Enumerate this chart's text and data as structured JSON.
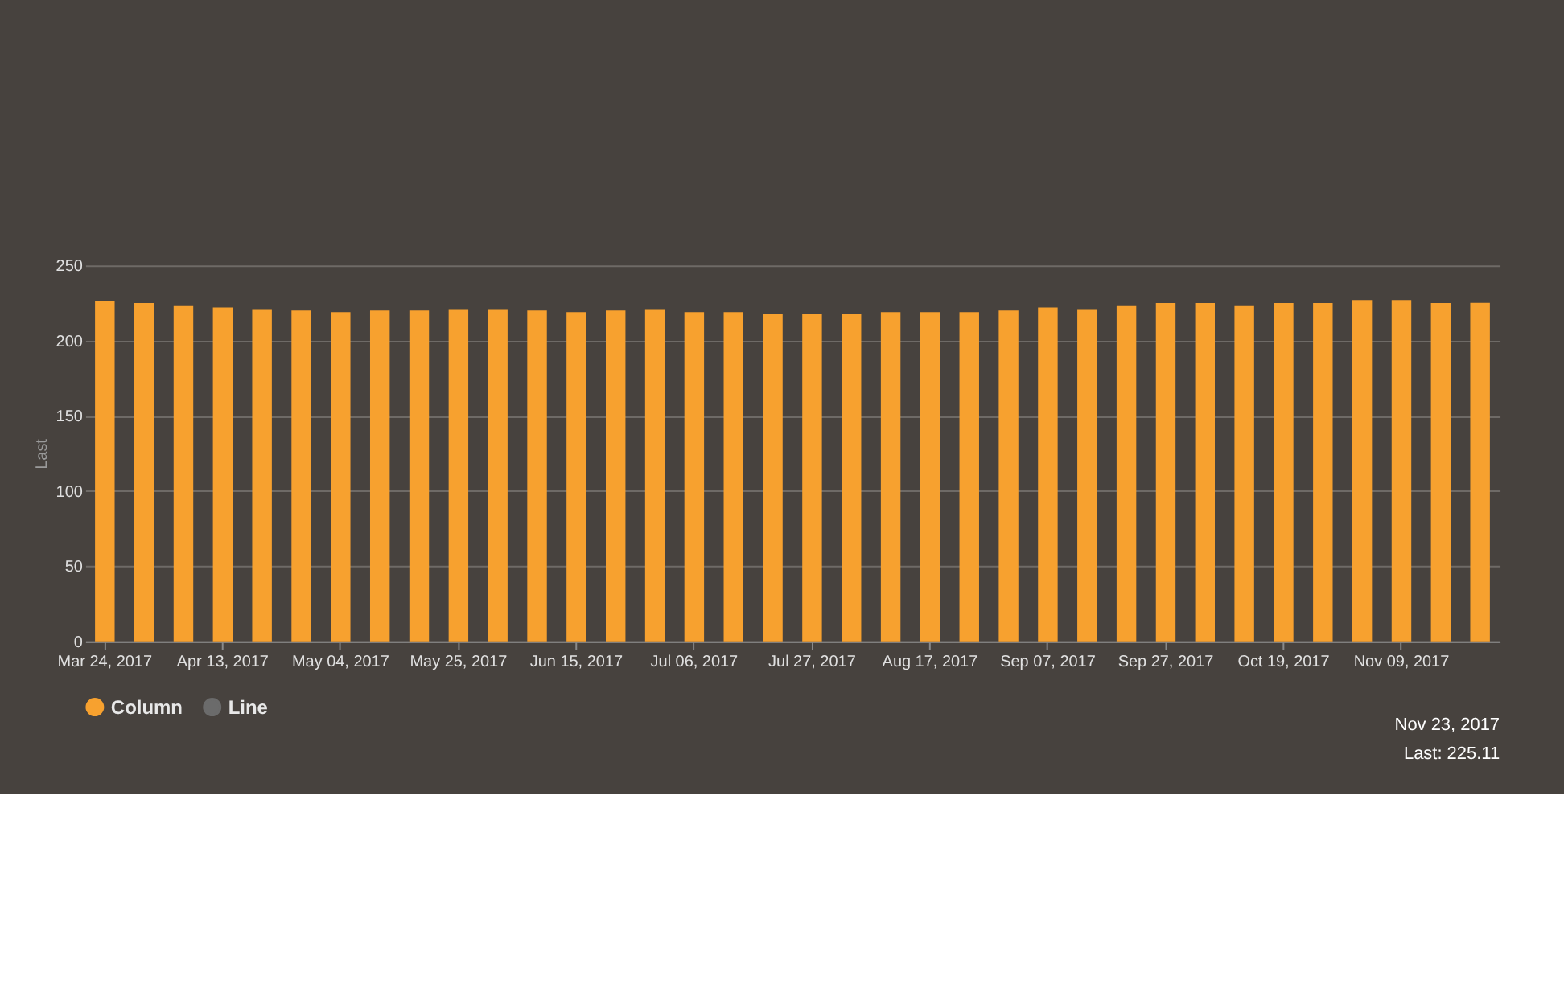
{
  "chart_data": {
    "type": "bar",
    "ylabel": "Last",
    "categories": [
      "Mar 24, 2017",
      null,
      null,
      "Apr 13, 2017",
      null,
      null,
      "May 04, 2017",
      null,
      null,
      "May 25, 2017",
      null,
      null,
      "Jun 15, 2017",
      null,
      null,
      "Jul 06, 2017",
      null,
      null,
      "Jul 27, 2017",
      null,
      null,
      "Aug 17, 2017",
      null,
      null,
      "Sep 07, 2017",
      null,
      null,
      "Sep 27, 2017",
      null,
      null,
      "Oct 19, 2017",
      null,
      null,
      "Nov 09, 2017",
      null,
      null
    ],
    "series": [
      {
        "name": "Column",
        "color": "#f7a12f",
        "values": [
          226,
          225,
          223,
          222,
          221,
          220,
          219,
          220,
          220,
          221,
          221,
          220,
          219,
          220,
          221,
          219,
          219,
          218,
          218,
          218,
          219,
          219,
          219,
          220,
          222,
          221,
          223,
          225,
          225,
          223,
          225,
          225,
          227,
          227,
          225,
          225.11
        ]
      },
      {
        "name": "Line",
        "type": "line",
        "color": "#6b6b6b",
        "values": [
          null,
          null,
          null,
          null,
          null,
          null,
          null,
          null,
          null,
          null,
          null,
          null,
          null,
          null,
          null,
          null,
          null,
          null,
          null,
          null,
          null,
          null,
          null,
          null,
          null,
          null,
          null,
          null,
          null,
          null,
          null,
          null,
          null,
          null,
          null,
          null
        ]
      }
    ],
    "ylim": [
      0,
      250
    ],
    "yticks": [
      0,
      50,
      100,
      150,
      200,
      250
    ],
    "grid": "y",
    "legend": "bottom",
    "annotations": [
      "Nov 23, 2017",
      "Last: 225.11"
    ]
  }
}
